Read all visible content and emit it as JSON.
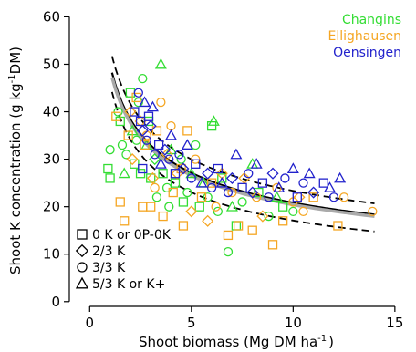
{
  "chart_data": {
    "type": "scatter",
    "xlabel": "Shoot biomass (Mg DM ha",
    "xlabel_sup": "-1",
    "xlabel_end": ")",
    "ylabel": "Shoot K concentration (g kg",
    "ylabel_sup": "-1",
    "ylabel_end": "DM)",
    "xlim": [
      -1,
      15.5
    ],
    "ylim": [
      -1,
      62
    ],
    "x_ticks": [
      0,
      5,
      10,
      15
    ],
    "y_ticks": [
      0,
      10,
      20,
      30,
      40,
      50,
      60
    ],
    "grid": false,
    "site_legend": [
      {
        "name": "Changins",
        "color": "#33dd33"
      },
      {
        "name": "Ellighausen",
        "color": "#f5a623"
      },
      {
        "name": "Oensingen",
        "color": "#2222cc"
      }
    ],
    "treatment_legend": [
      {
        "marker": "square",
        "label": "0 K or 0P-0K"
      },
      {
        "marker": "diamond",
        "label": "2/3 K"
      },
      {
        "marker": "circle",
        "label": "3/3 K"
      },
      {
        "marker": "triangle",
        "label": "5/3 K or K+"
      }
    ],
    "curves": [
      {
        "role": "fit",
        "color": "#000000",
        "style": "solid",
        "a": 50,
        "b": -0.38
      },
      {
        "role": "fit-grey",
        "color": "#aaaaaa",
        "style": "solid",
        "a": 49,
        "b": -0.38
      },
      {
        "role": "upper",
        "color": "#000000",
        "style": "dashed",
        "a": 53.5,
        "b": -0.36
      },
      {
        "role": "lower",
        "color": "#000000",
        "style": "dashed",
        "a": 46,
        "b": -0.43
      }
    ],
    "curve_x_range": [
      1.1,
      14
    ],
    "series": [
      {
        "name": "Changins",
        "color": "#33dd33",
        "points": [
          [
            1.0,
            32,
            "c"
          ],
          [
            0.9,
            28,
            "s"
          ],
          [
            1.0,
            26,
            "s"
          ],
          [
            1.4,
            40,
            "c"
          ],
          [
            1.5,
            38,
            "s"
          ],
          [
            1.6,
            33,
            "c"
          ],
          [
            1.8,
            31,
            "c"
          ],
          [
            2.0,
            44,
            "s"
          ],
          [
            2.1,
            36,
            "t"
          ],
          [
            2.2,
            29,
            "s"
          ],
          [
            2.4,
            42,
            "c"
          ],
          [
            2.5,
            27,
            "s"
          ],
          [
            2.6,
            47,
            "c"
          ],
          [
            2.8,
            33,
            "t"
          ],
          [
            3.0,
            26,
            "s"
          ],
          [
            3.2,
            30,
            "d"
          ],
          [
            3.3,
            22,
            "c"
          ],
          [
            3.5,
            50,
            "t"
          ],
          [
            3.6,
            27,
            "s"
          ],
          [
            3.8,
            24,
            "c"
          ],
          [
            3.9,
            20,
            "c"
          ],
          [
            4.0,
            32,
            "t"
          ],
          [
            4.2,
            25,
            "s"
          ],
          [
            4.5,
            30,
            "c"
          ],
          [
            4.6,
            21,
            "s"
          ],
          [
            4.8,
            23,
            "c"
          ],
          [
            5.0,
            27,
            "t"
          ],
          [
            5.2,
            33,
            "c"
          ],
          [
            5.4,
            20,
            "s"
          ],
          [
            5.6,
            25,
            "t"
          ],
          [
            5.8,
            22,
            "c"
          ],
          [
            6.0,
            37,
            "s"
          ],
          [
            6.1,
            38,
            "t"
          ],
          [
            6.3,
            19,
            "c"
          ],
          [
            6.5,
            26,
            "s"
          ],
          [
            6.8,
            10.5,
            "c"
          ],
          [
            7.0,
            20,
            "t"
          ],
          [
            7.2,
            16,
            "s"
          ],
          [
            7.5,
            21,
            "c"
          ],
          [
            8.0,
            29,
            "t"
          ],
          [
            8.3,
            23,
            "s"
          ],
          [
            8.8,
            18,
            "c"
          ],
          [
            9.2,
            22,
            "t"
          ],
          [
            9.5,
            20,
            "s"
          ],
          [
            10.0,
            19,
            "c"
          ],
          [
            2.3,
            34,
            "c"
          ],
          [
            2.9,
            38,
            "s"
          ],
          [
            1.7,
            27,
            "t"
          ]
        ]
      },
      {
        "name": "Ellighausen",
        "color": "#f5a623",
        "points": [
          [
            1.3,
            39,
            "s"
          ],
          [
            1.5,
            21,
            "s"
          ],
          [
            1.7,
            17,
            "s"
          ],
          [
            1.9,
            35,
            "s"
          ],
          [
            2.0,
            40,
            "d"
          ],
          [
            2.1,
            30,
            "d"
          ],
          [
            2.3,
            43,
            "s"
          ],
          [
            2.5,
            38,
            "d"
          ],
          [
            2.6,
            20,
            "s"
          ],
          [
            2.8,
            35,
            "c"
          ],
          [
            3.0,
            20,
            "s"
          ],
          [
            3.1,
            26,
            "d"
          ],
          [
            3.3,
            36,
            "s"
          ],
          [
            3.5,
            42,
            "c"
          ],
          [
            3.6,
            18,
            "s"
          ],
          [
            3.8,
            31,
            "d"
          ],
          [
            4.0,
            37,
            "c"
          ],
          [
            4.1,
            23,
            "s"
          ],
          [
            4.3,
            27,
            "d"
          ],
          [
            4.6,
            16,
            "s"
          ],
          [
            4.8,
            36,
            "s"
          ],
          [
            5.0,
            19,
            "d"
          ],
          [
            5.2,
            30,
            "c"
          ],
          [
            5.5,
            22,
            "s"
          ],
          [
            5.8,
            17,
            "d"
          ],
          [
            6.0,
            25,
            "s"
          ],
          [
            6.2,
            20,
            "c"
          ],
          [
            6.5,
            27,
            "d"
          ],
          [
            6.8,
            14,
            "s"
          ],
          [
            7.0,
            23,
            "c"
          ],
          [
            7.3,
            16,
            "s"
          ],
          [
            7.6,
            26,
            "d"
          ],
          [
            8.0,
            15,
            "s"
          ],
          [
            8.2,
            22,
            "c"
          ],
          [
            8.5,
            18,
            "d"
          ],
          [
            9.0,
            12,
            "s"
          ],
          [
            9.2,
            24,
            "c"
          ],
          [
            9.5,
            17,
            "s"
          ],
          [
            10.0,
            21,
            "c"
          ],
          [
            10.3,
            22,
            "d"
          ],
          [
            10.5,
            19,
            "c"
          ],
          [
            11.0,
            22,
            "s"
          ],
          [
            12.2,
            16,
            "s"
          ],
          [
            12.5,
            22,
            "c"
          ],
          [
            13.9,
            19,
            "c"
          ],
          [
            2.7,
            33,
            "s"
          ],
          [
            3.2,
            24,
            "c"
          ],
          [
            4.5,
            28,
            "s"
          ]
        ]
      },
      {
        "name": "Oensingen",
        "color": "#2222cc",
        "points": [
          [
            2.2,
            40,
            "s"
          ],
          [
            2.4,
            44,
            "c"
          ],
          [
            2.5,
            38,
            "s"
          ],
          [
            2.6,
            36,
            "d"
          ],
          [
            2.7,
            42,
            "t"
          ],
          [
            2.8,
            34,
            "c"
          ],
          [
            2.9,
            39,
            "s"
          ],
          [
            3.0,
            37,
            "d"
          ],
          [
            3.2,
            31,
            "c"
          ],
          [
            3.4,
            33,
            "s"
          ],
          [
            3.5,
            29,
            "t"
          ],
          [
            3.7,
            32,
            "d"
          ],
          [
            3.9,
            30,
            "c"
          ],
          [
            4.0,
            35,
            "t"
          ],
          [
            4.2,
            27,
            "s"
          ],
          [
            4.4,
            31,
            "c"
          ],
          [
            4.6,
            28,
            "d"
          ],
          [
            4.8,
            33,
            "t"
          ],
          [
            5.0,
            26,
            "c"
          ],
          [
            5.2,
            29,
            "s"
          ],
          [
            5.5,
            25,
            "t"
          ],
          [
            5.8,
            27,
            "d"
          ],
          [
            6.0,
            24,
            "c"
          ],
          [
            6.3,
            28,
            "s"
          ],
          [
            6.5,
            25,
            "t"
          ],
          [
            6.8,
            23,
            "c"
          ],
          [
            7.0,
            26,
            "d"
          ],
          [
            7.2,
            31,
            "t"
          ],
          [
            7.5,
            24,
            "s"
          ],
          [
            7.8,
            27,
            "c"
          ],
          [
            8.0,
            23,
            "d"
          ],
          [
            8.2,
            29,
            "t"
          ],
          [
            8.5,
            25,
            "s"
          ],
          [
            8.8,
            22,
            "c"
          ],
          [
            9.0,
            27,
            "d"
          ],
          [
            9.3,
            24,
            "t"
          ],
          [
            9.6,
            26,
            "c"
          ],
          [
            10.0,
            28,
            "t"
          ],
          [
            10.2,
            22,
            "s"
          ],
          [
            10.5,
            25,
            "c"
          ],
          [
            10.8,
            27,
            "t"
          ],
          [
            11.0,
            23,
            "d"
          ],
          [
            11.5,
            25,
            "s"
          ],
          [
            11.8,
            24,
            "t"
          ],
          [
            12.0,
            22,
            "c"
          ],
          [
            12.3,
            26,
            "t"
          ],
          [
            3.1,
            41,
            "t"
          ],
          [
            2.6,
            28,
            "s"
          ]
        ]
      }
    ]
  }
}
